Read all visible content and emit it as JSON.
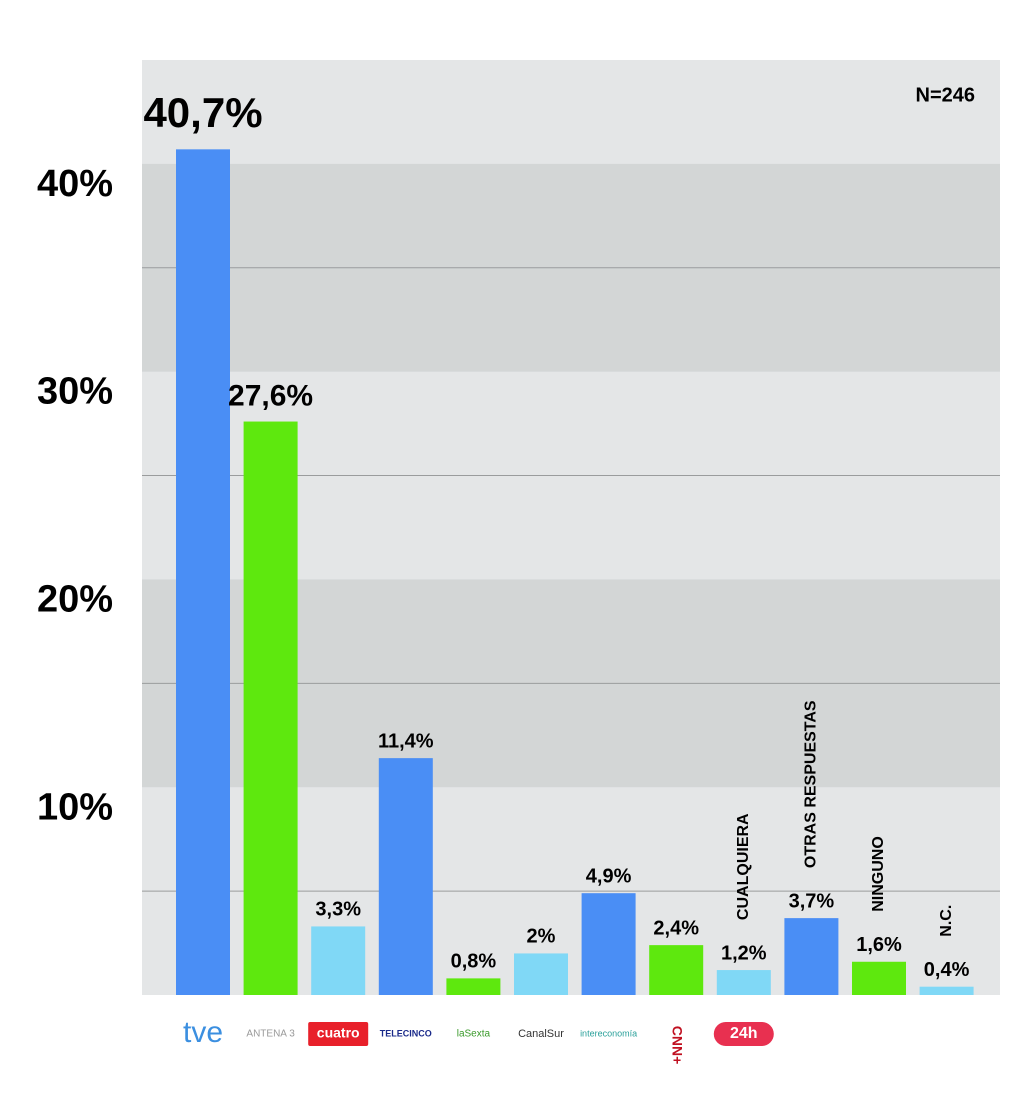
{
  "chart_data": {
    "type": "bar",
    "annotation": "N=246",
    "categories": [
      "tve",
      "ANTENA 3",
      "cuatro",
      "TELECINCO",
      "laSexta",
      "CanalSur",
      "intereconomía",
      "CNN+",
      "24h",
      null,
      null,
      null
    ],
    "bar_annotations": [
      null,
      null,
      null,
      null,
      null,
      null,
      null,
      null,
      "CUALQUIERA",
      "OTRAS RESPUESTAS",
      "NINGUNO",
      "N.C."
    ],
    "values": [
      40.7,
      27.6,
      3.3,
      11.4,
      0.8,
      2,
      4.9,
      2.4,
      1.2,
      3.7,
      1.6,
      0.4
    ],
    "value_labels": [
      "40,7%",
      "27,6%",
      "3,3%",
      "11,4%",
      "0,8%",
      "2%",
      "4,9%",
      "2,4%",
      "1,2%",
      "3,7%",
      "1,6%",
      "0,4%"
    ],
    "colors": [
      "#4a8ef5",
      "#5ee80e",
      "#80d8f6",
      "#4a8ef5",
      "#5ee80e",
      "#80d8f6",
      "#4a8ef5",
      "#5ee80e",
      "#80d8f6",
      "#4a8ef5",
      "#5ee80e",
      "#80d8f6"
    ],
    "ylim": [
      0,
      45
    ],
    "yticks": [
      {
        "value": 10,
        "label": "10%"
      },
      {
        "value": 20,
        "label": "20%"
      },
      {
        "value": 30,
        "label": "30%"
      },
      {
        "value": 40,
        "label": "40%"
      }
    ],
    "ygrid_minor": [
      5,
      15,
      25,
      35
    ],
    "grid": true
  }
}
